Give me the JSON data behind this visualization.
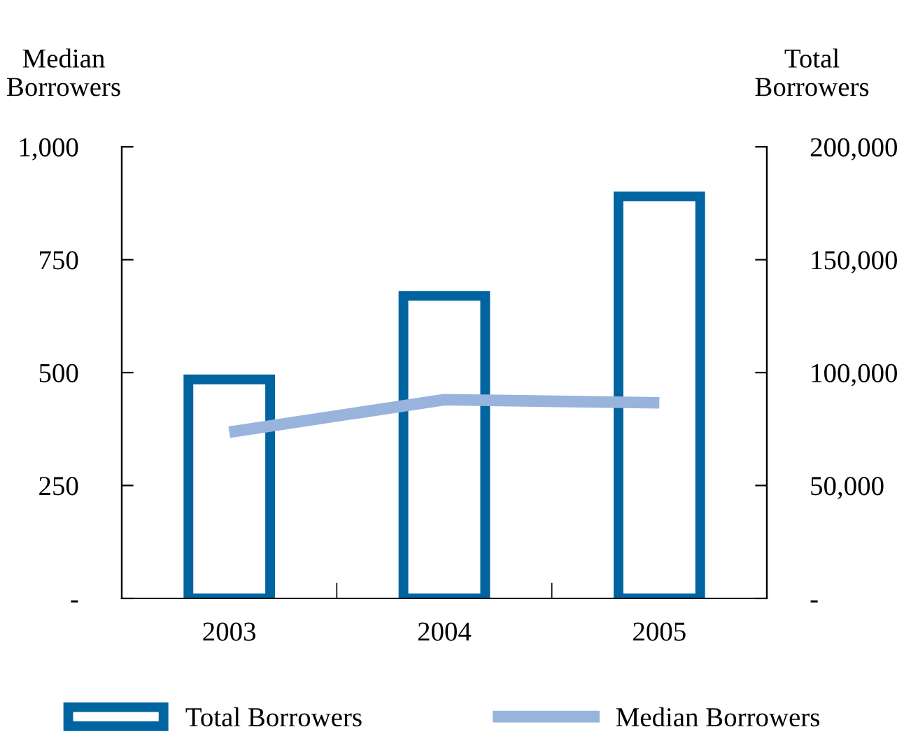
{
  "chart_data": {
    "type": "bar",
    "categories": [
      "2003",
      "2004",
      "2005"
    ],
    "ylabel": "Median\nBorrowers",
    "y2label": "Total\nBorrowers",
    "series": [
      {
        "name": "Total Borrowers",
        "axis": "y2",
        "color": "#0064a0",
        "values": [
          97000,
          134000,
          178000
        ]
      },
      {
        "name": "Median Borrowers",
        "type": "line",
        "axis": "y",
        "color": "#98b4dc",
        "values": [
          368,
          440,
          433
        ]
      }
    ],
    "ylim": [
      0,
      1000
    ],
    "yticks": [
      {
        "value": 0,
        "label": "-"
      },
      250,
      500,
      750,
      {
        "value": 1000,
        "label": "1,000"
      }
    ],
    "y2lim": [
      0,
      200000
    ],
    "y2ticks": [
      {
        "value": 0,
        "label": "-"
      },
      {
        "value": 50000,
        "label": "50,000"
      },
      {
        "value": 100000,
        "label": "100,000"
      },
      {
        "value": 150000,
        "label": "150,000"
      },
      {
        "value": 200000,
        "label": "200,000"
      }
    ],
    "grid": false,
    "legend": "bottom",
    "marker": "none",
    "line_style": "solid"
  }
}
